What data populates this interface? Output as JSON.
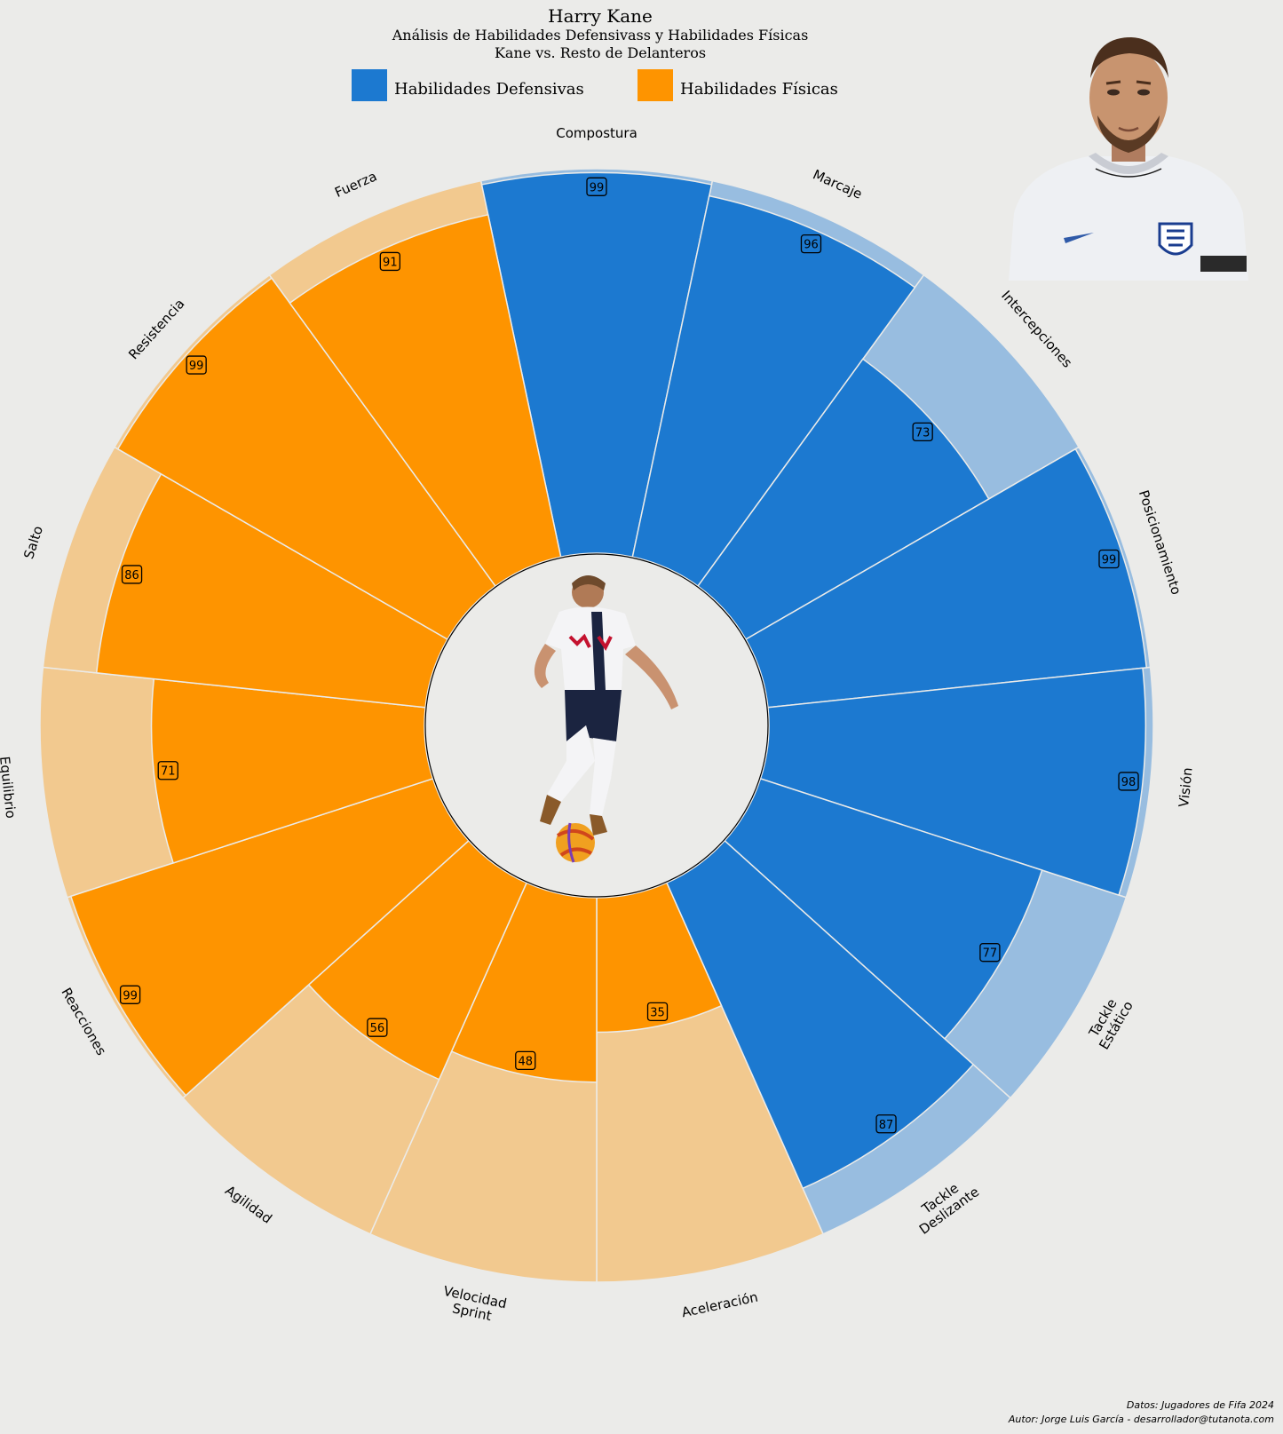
{
  "header": {
    "title": "Harry Kane",
    "subtitle": "Análisis de Habilidades Defensivass y Habilidades Físicas",
    "comparison": "Kane vs. Resto de Delanteros"
  },
  "legend": [
    {
      "label": "Habilidades Defensivas",
      "color": "#1c79d0"
    },
    {
      "label": "Habilidades Físicas",
      "color": "#fe9400"
    }
  ],
  "chart_data": {
    "type": "polar-bar",
    "rmax": 100,
    "groups": [
      {
        "name": "Habilidades Defensivas",
        "color": "#1c79d0",
        "light_color": "#98bde0"
      },
      {
        "name": "Habilidades Físicas",
        "color": "#fe9400",
        "light_color": "#f2c98f"
      }
    ],
    "categories": [
      {
        "label": [
          "Compostura"
        ],
        "value": 99,
        "group": 0
      },
      {
        "label": [
          "Marcaje"
        ],
        "value": 96,
        "group": 0
      },
      {
        "label": [
          "Intercepciones"
        ],
        "value": 73,
        "group": 0
      },
      {
        "label": [
          "Posicionamiento"
        ],
        "value": 99,
        "group": 0
      },
      {
        "label": [
          "Visión"
        ],
        "value": 98,
        "group": 0
      },
      {
        "label": [
          "Tackle",
          "Estático"
        ],
        "value": 77,
        "group": 0
      },
      {
        "label": [
          "Tackle",
          "Deslizante"
        ],
        "value": 87,
        "group": 0
      },
      {
        "label": [
          "Aceleración"
        ],
        "value": 35,
        "group": 1
      },
      {
        "label": [
          "Velocidad",
          "Sprint"
        ],
        "value": 48,
        "group": 1
      },
      {
        "label": [
          "Agilidad"
        ],
        "value": 56,
        "group": 1
      },
      {
        "label": [
          "Reacciones"
        ],
        "value": 99,
        "group": 1
      },
      {
        "label": [
          "Equilibrio"
        ],
        "value": 71,
        "group": 1
      },
      {
        "label": [
          "Salto"
        ],
        "value": 86,
        "group": 1
      },
      {
        "label": [
          "Resistencia"
        ],
        "value": 99,
        "group": 1
      },
      {
        "label": [
          "Fuerza"
        ],
        "value": 91,
        "group": 1
      }
    ]
  },
  "credits": {
    "source": "Datos: Jugadores de Fifa 2024",
    "author": "Autor: Jorge Luis García - desarrollador@tutanota.com"
  }
}
